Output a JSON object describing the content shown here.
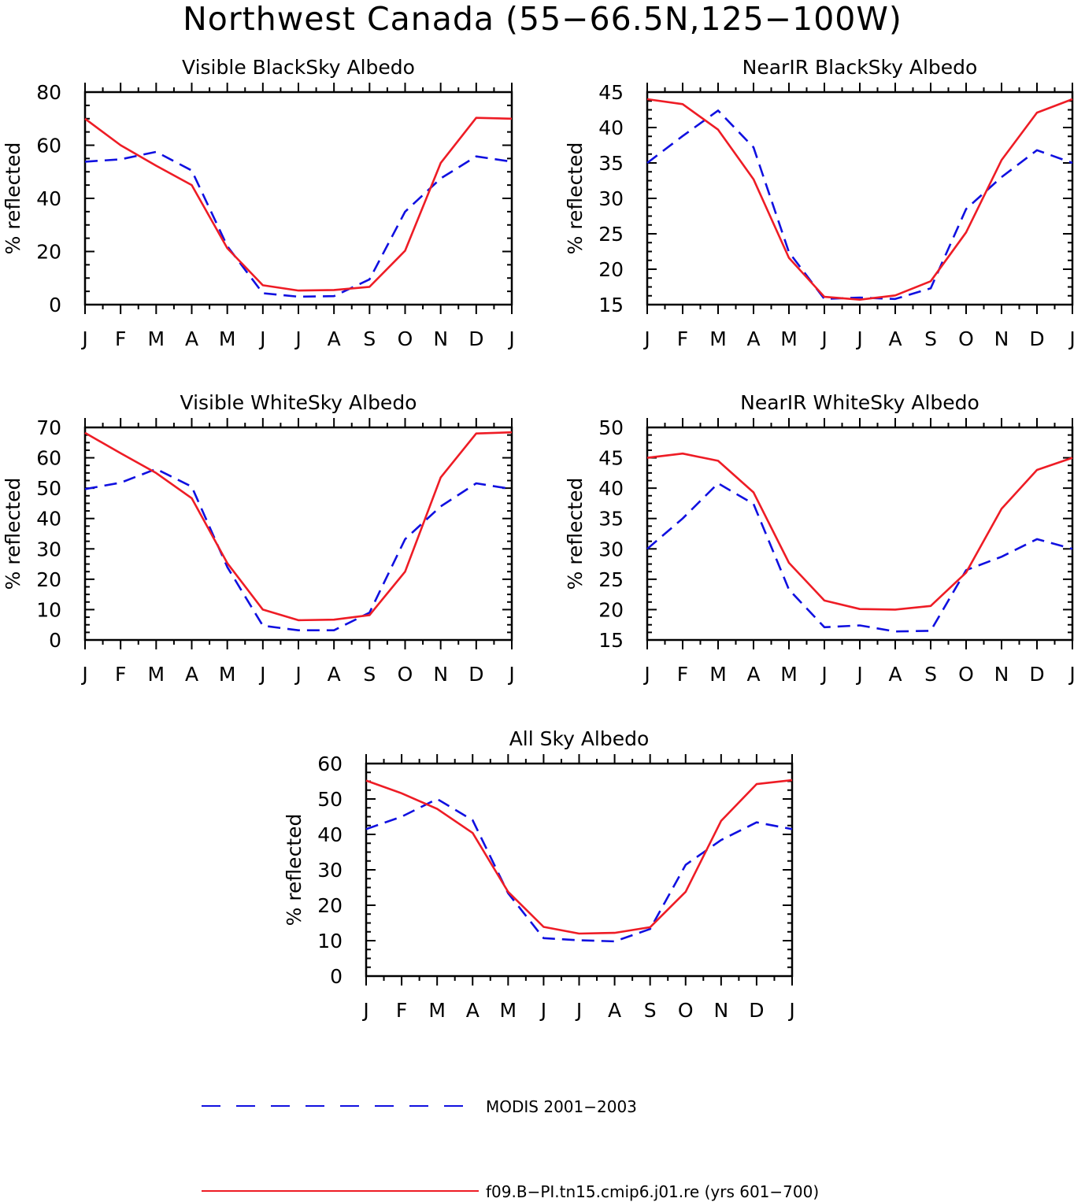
{
  "figure": {
    "title": "Northwest Canada (55−66.5N,125−100W)"
  },
  "colors": {
    "model": "#ee1c25",
    "obs": "#1010e0",
    "axis": "#000000"
  },
  "legend": {
    "placement": "bottom",
    "items": [
      {
        "label": "MODIS 2001−2003",
        "style": "dashed",
        "color": "#1010e0"
      },
      {
        "label": "f09.B−PI.tn15.cmip6.j01.re (yrs 601−700)",
        "style": "solid",
        "color": "#ee1c25"
      }
    ]
  },
  "chart_data": [
    {
      "type": "line",
      "title": "Visible BlackSky Albedo",
      "ylabel": "% reflected",
      "xlabel": "",
      "categories": [
        "J",
        "F",
        "M",
        "A",
        "M",
        "J",
        "J",
        "A",
        "S",
        "O",
        "N",
        "D",
        "J"
      ],
      "ylim": [
        0,
        80
      ],
      "yticks": [
        0,
        20,
        40,
        60,
        80
      ],
      "series": [
        {
          "name": "MODIS 2001−2003",
          "style": "dashed",
          "values": [
            53.8,
            54.7,
            57.5,
            50.5,
            22.0,
            4.3,
            3.0,
            3.2,
            9.5,
            35.0,
            47.5,
            55.8,
            53.8
          ]
        },
        {
          "name": "f09.B−PI.tn15.cmip6.j01.re (yrs 601−700)",
          "style": "solid",
          "values": [
            70.0,
            60.0,
            52.3,
            45.0,
            21.2,
            7.3,
            5.3,
            5.5,
            6.7,
            20.3,
            53.3,
            70.3,
            70.0
          ]
        }
      ]
    },
    {
      "type": "line",
      "title": "NearIR BlackSky Albedo",
      "ylabel": "% reflected",
      "xlabel": "",
      "categories": [
        "J",
        "F",
        "M",
        "A",
        "M",
        "J",
        "J",
        "A",
        "S",
        "O",
        "N",
        "D",
        "J"
      ],
      "ylim": [
        15,
        45
      ],
      "yticks": [
        15,
        20,
        25,
        30,
        35,
        40,
        45
      ],
      "series": [
        {
          "name": "MODIS 2001−2003",
          "style": "dashed",
          "values": [
            35.0,
            38.8,
            42.4,
            37.2,
            22.4,
            15.8,
            16.0,
            15.8,
            17.3,
            28.5,
            33.0,
            36.8,
            35.0
          ]
        },
        {
          "name": "f09.B−PI.tn15.cmip6.j01.re (yrs 601−700)",
          "style": "solid",
          "values": [
            44.0,
            43.3,
            39.7,
            32.7,
            21.6,
            16.1,
            15.7,
            16.3,
            18.3,
            25.2,
            35.4,
            42.1,
            44.0
          ]
        }
      ]
    },
    {
      "type": "line",
      "title": "Visible WhiteSky Albedo",
      "ylabel": "% reflected",
      "xlabel": "",
      "categories": [
        "J",
        "F",
        "M",
        "A",
        "M",
        "J",
        "J",
        "A",
        "S",
        "O",
        "N",
        "D",
        "J"
      ],
      "ylim": [
        0,
        70
      ],
      "yticks": [
        0,
        10,
        20,
        30,
        40,
        50,
        60,
        70
      ],
      "series": [
        {
          "name": "MODIS 2001−2003",
          "style": "dashed",
          "values": [
            49.7,
            51.8,
            56.3,
            50.5,
            24.0,
            4.7,
            3.2,
            3.2,
            9.0,
            33.2,
            44.0,
            51.6,
            49.7
          ]
        },
        {
          "name": "f09.B−PI.tn15.cmip6.j01.re (yrs 601−700)",
          "style": "solid",
          "values": [
            68.2,
            61.5,
            55.0,
            46.7,
            25.3,
            10.0,
            6.5,
            6.7,
            8.2,
            22.5,
            53.5,
            68.0,
            68.4
          ]
        }
      ]
    },
    {
      "type": "line",
      "title": "NearIR WhiteSky Albedo",
      "ylabel": "% reflected",
      "xlabel": "",
      "categories": [
        "J",
        "F",
        "M",
        "A",
        "M",
        "J",
        "J",
        "A",
        "S",
        "O",
        "N",
        "D",
        "J"
      ],
      "ylim": [
        15,
        50
      ],
      "yticks": [
        15,
        20,
        25,
        30,
        35,
        40,
        45,
        50
      ],
      "series": [
        {
          "name": "MODIS 2001−2003",
          "style": "dashed",
          "values": [
            30.0,
            35.0,
            40.8,
            37.4,
            23.3,
            17.1,
            17.4,
            16.4,
            16.5,
            26.5,
            28.7,
            31.6,
            30.0
          ]
        },
        {
          "name": "f09.B−PI.tn15.cmip6.j01.re (yrs 601−700)",
          "style": "solid",
          "values": [
            45.0,
            45.7,
            44.5,
            39.3,
            27.7,
            21.5,
            20.1,
            20.0,
            20.6,
            26.1,
            36.6,
            43.0,
            45.0
          ]
        }
      ]
    },
    {
      "type": "line",
      "title": "All Sky Albedo",
      "ylabel": "% reflected",
      "xlabel": "",
      "categories": [
        "J",
        "F",
        "M",
        "A",
        "M",
        "J",
        "J",
        "A",
        "S",
        "O",
        "N",
        "D",
        "J"
      ],
      "ylim": [
        0,
        60
      ],
      "yticks": [
        0,
        10,
        20,
        30,
        40,
        50,
        60
      ],
      "series": [
        {
          "name": "MODIS 2001−2003",
          "style": "dashed",
          "values": [
            41.5,
            45.0,
            50.0,
            44.0,
            23.4,
            10.7,
            10.1,
            9.8,
            13.3,
            31.4,
            38.4,
            43.4,
            41.5
          ]
        },
        {
          "name": "f09.B−PI.tn15.cmip6.j01.re (yrs 601−700)",
          "style": "solid",
          "values": [
            55.2,
            51.6,
            47.2,
            40.4,
            23.8,
            13.9,
            12.0,
            12.2,
            13.8,
            23.8,
            43.8,
            54.2,
            55.3
          ]
        }
      ]
    }
  ]
}
